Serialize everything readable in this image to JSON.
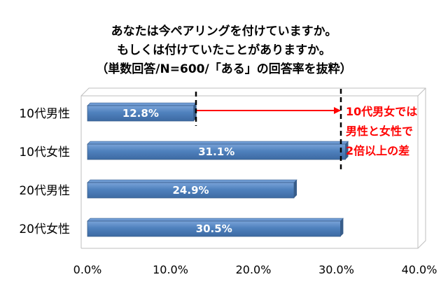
{
  "chart_data": {
    "type": "bar",
    "orientation": "horizontal",
    "title_lines": [
      "あなたは今ペアリングを付けていますか。",
      "もしくは付けていたことがありますか。",
      "（単数回答/N=600/「ある」の回答率を抜粋）"
    ],
    "categories": [
      "10代男性",
      "10代女性",
      "20代男性",
      "20代女性"
    ],
    "values": [
      12.8,
      31.1,
      24.9,
      30.5
    ],
    "value_labels": [
      "12.8%",
      "31.1%",
      "24.9%",
      "30.5%"
    ],
    "xlim": [
      0,
      40
    ],
    "ticks": [
      0,
      10,
      20,
      30,
      40
    ],
    "tick_labels": [
      "0.0%",
      "10.0%",
      "20.0%",
      "30.0%",
      "40.0%"
    ],
    "annotation_lines": [
      "10代男女では",
      "男性と女性で",
      "2倍以上の差"
    ],
    "grid": false,
    "legend": "none",
    "colors": {
      "bar_fill": "#4f81bd",
      "bar_top": "#6f9bd3",
      "bar_edge": "#385d8a",
      "annotation": "#ff0000",
      "frame": "#bfbfbf"
    }
  }
}
